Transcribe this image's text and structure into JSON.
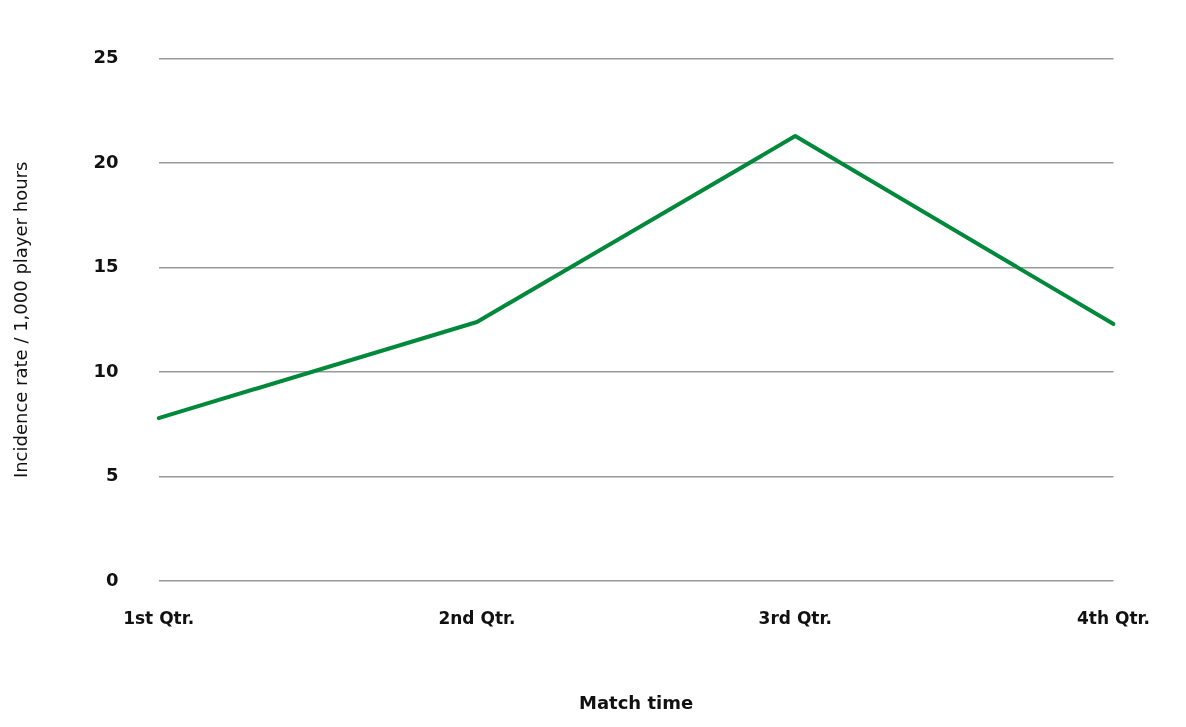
{
  "chart_data": {
    "type": "line",
    "xlabel": "Match time",
    "ylabel": "Incidence rate / 1,000 player hours",
    "categories": [
      "1st Qtr.",
      "2nd Qtr.",
      "3rd Qtr.",
      "4th Qtr."
    ],
    "series": [
      {
        "color": "#00893a",
        "values": [
          7.8,
          12.4,
          21.3,
          12.3
        ]
      }
    ],
    "ylim": [
      0,
      25
    ],
    "yticks": [
      0,
      5,
      10,
      15,
      20,
      25
    ],
    "grid": "y",
    "legend": false,
    "marker": "none",
    "line_style": "solid"
  }
}
